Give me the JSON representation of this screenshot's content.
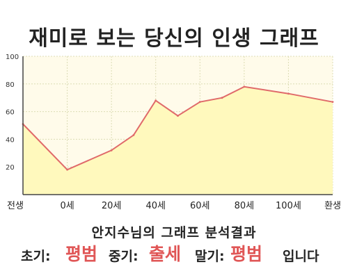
{
  "title": "재미로 보는 당신의 인생 그래프",
  "subtitle": "안지수님의 그래프 분석결과",
  "result": {
    "early_label": "초기:",
    "early_value": "평범",
    "mid_label": "중기:",
    "mid_value": "출세",
    "late_label": "말기:",
    "late_value": "평범",
    "ending": "입니다"
  },
  "colors": {
    "line": "#e06a6a",
    "fill": "#fff9bd",
    "plot_bg": "#fffbea",
    "grid": "#dcdcb4",
    "accent": "#e05656"
  },
  "chart_data": {
    "type": "area",
    "title": "재미로 보는 당신의 인생 그래프",
    "xlabel": "",
    "ylabel": "",
    "ylim": [
      0,
      100
    ],
    "yticks": [
      20,
      40,
      60,
      80,
      100
    ],
    "grid": true,
    "legend": "none",
    "x_tick_labels": [
      "전생",
      "0세",
      "20세",
      "40세",
      "60세",
      "80세",
      "100세",
      "환생"
    ],
    "x_tick_positions": [
      -20,
      0,
      20,
      40,
      60,
      80,
      100,
      120
    ],
    "series": [
      {
        "x": [
          -20,
          0,
          20,
          30,
          40,
          50,
          60,
          70,
          80,
          100,
          120
        ],
        "values": [
          51,
          18,
          32,
          43,
          68,
          57,
          67,
          70,
          78,
          73,
          67
        ]
      }
    ]
  }
}
